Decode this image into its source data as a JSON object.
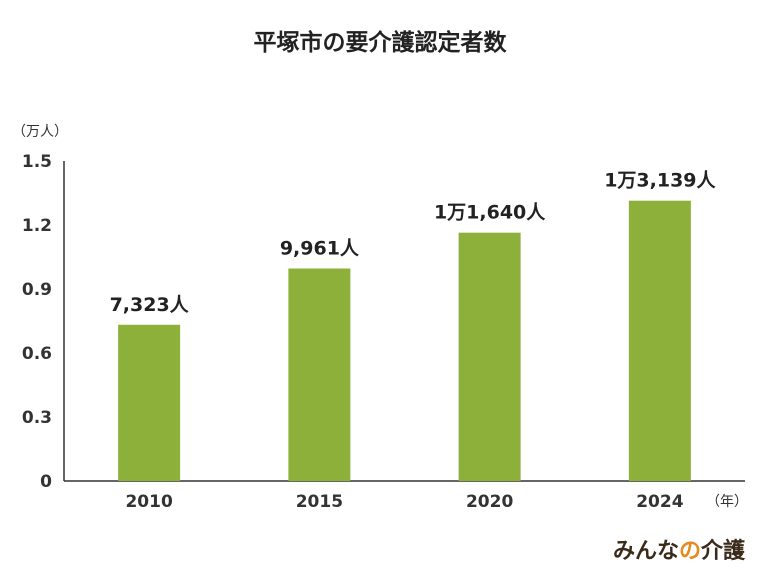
{
  "chart_data": {
    "type": "bar",
    "title": "平塚市の要介護認定者数",
    "y_unit": "（万人）",
    "x_unit": "（年）",
    "categories": [
      "2010",
      "2015",
      "2020",
      "2024"
    ],
    "values": [
      0.7323,
      0.9961,
      1.164,
      1.3139
    ],
    "data_labels": [
      "7,323人",
      "9,961人",
      "1万1,640人",
      "1万3,139人"
    ],
    "yticks": [
      "0",
      "0.3",
      "0.6",
      "0.9",
      "1.2",
      "1.5"
    ],
    "ylim": [
      0,
      1.5
    ],
    "grid": false,
    "bar_color": "#8db03a"
  },
  "logo": {
    "text_main": "みんな",
    "text_particle": "の",
    "text_end": "介護",
    "color_main": "#3a2a1a",
    "color_particle": "#e68a1e"
  }
}
